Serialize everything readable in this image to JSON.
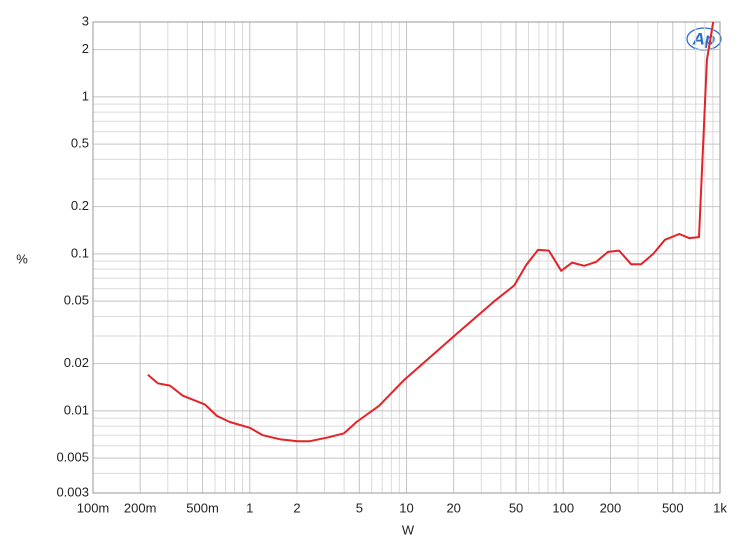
{
  "chart_data": {
    "type": "line",
    "x_label": "W",
    "y_label": "%",
    "logo": "Ap",
    "xscale": "log",
    "yscale": "log",
    "grid": true,
    "xlim": [
      0.1,
      1000
    ],
    "ylim": [
      0.003,
      3
    ],
    "xticks": [
      {
        "value": 0.1,
        "label": "100m"
      },
      {
        "value": 0.2,
        "label": "200m"
      },
      {
        "value": 0.5,
        "label": "500m"
      },
      1,
      2,
      5,
      10,
      20,
      50,
      100,
      200,
      500,
      {
        "value": 1000,
        "label": "1k"
      }
    ],
    "yticks": [
      0.003,
      0.005,
      0.01,
      0.02,
      0.05,
      0.1,
      0.2,
      0.5,
      1,
      2,
      3
    ],
    "xminorticks": [
      0.3,
      0.4,
      0.6,
      0.7,
      0.8,
      0.9,
      3,
      4,
      6,
      7,
      8,
      9,
      30,
      40,
      60,
      70,
      80,
      90,
      300,
      400,
      600,
      700,
      800,
      900
    ],
    "yminorticks": [
      0.004,
      0.006,
      0.007,
      0.008,
      0.009,
      0.03,
      0.04,
      0.06,
      0.07,
      0.08,
      0.09,
      0.3,
      0.4,
      0.6,
      0.7,
      0.8,
      0.9
    ],
    "series": [
      {
        "color": "#e62228",
        "x": [
          0.224,
          0.259,
          0.31,
          0.374,
          0.517,
          0.617,
          0.746,
          1.0,
          1.21,
          1.55,
          2.02,
          2.4,
          3.2,
          4.0,
          4.8,
          6.7,
          9.7,
          21.7,
          36.3,
          48.7,
          58,
          69,
          81,
          97,
          114,
          136,
          162,
          193,
          227,
          271,
          314,
          375,
          445,
          550,
          635,
          735,
          825,
          905
        ],
        "values": [
          0.017,
          0.015,
          0.0145,
          0.0125,
          0.011,
          0.0093,
          0.0085,
          0.0078,
          0.007,
          0.0066,
          0.0064,
          0.0064,
          0.0068,
          0.0072,
          0.0085,
          0.0108,
          0.0158,
          0.032,
          0.05,
          0.063,
          0.085,
          0.106,
          0.105,
          0.078,
          0.088,
          0.084,
          0.089,
          0.103,
          0.105,
          0.086,
          0.086,
          0.1,
          0.123,
          0.134,
          0.126,
          0.128,
          1.72,
          3.0
        ]
      }
    ]
  }
}
